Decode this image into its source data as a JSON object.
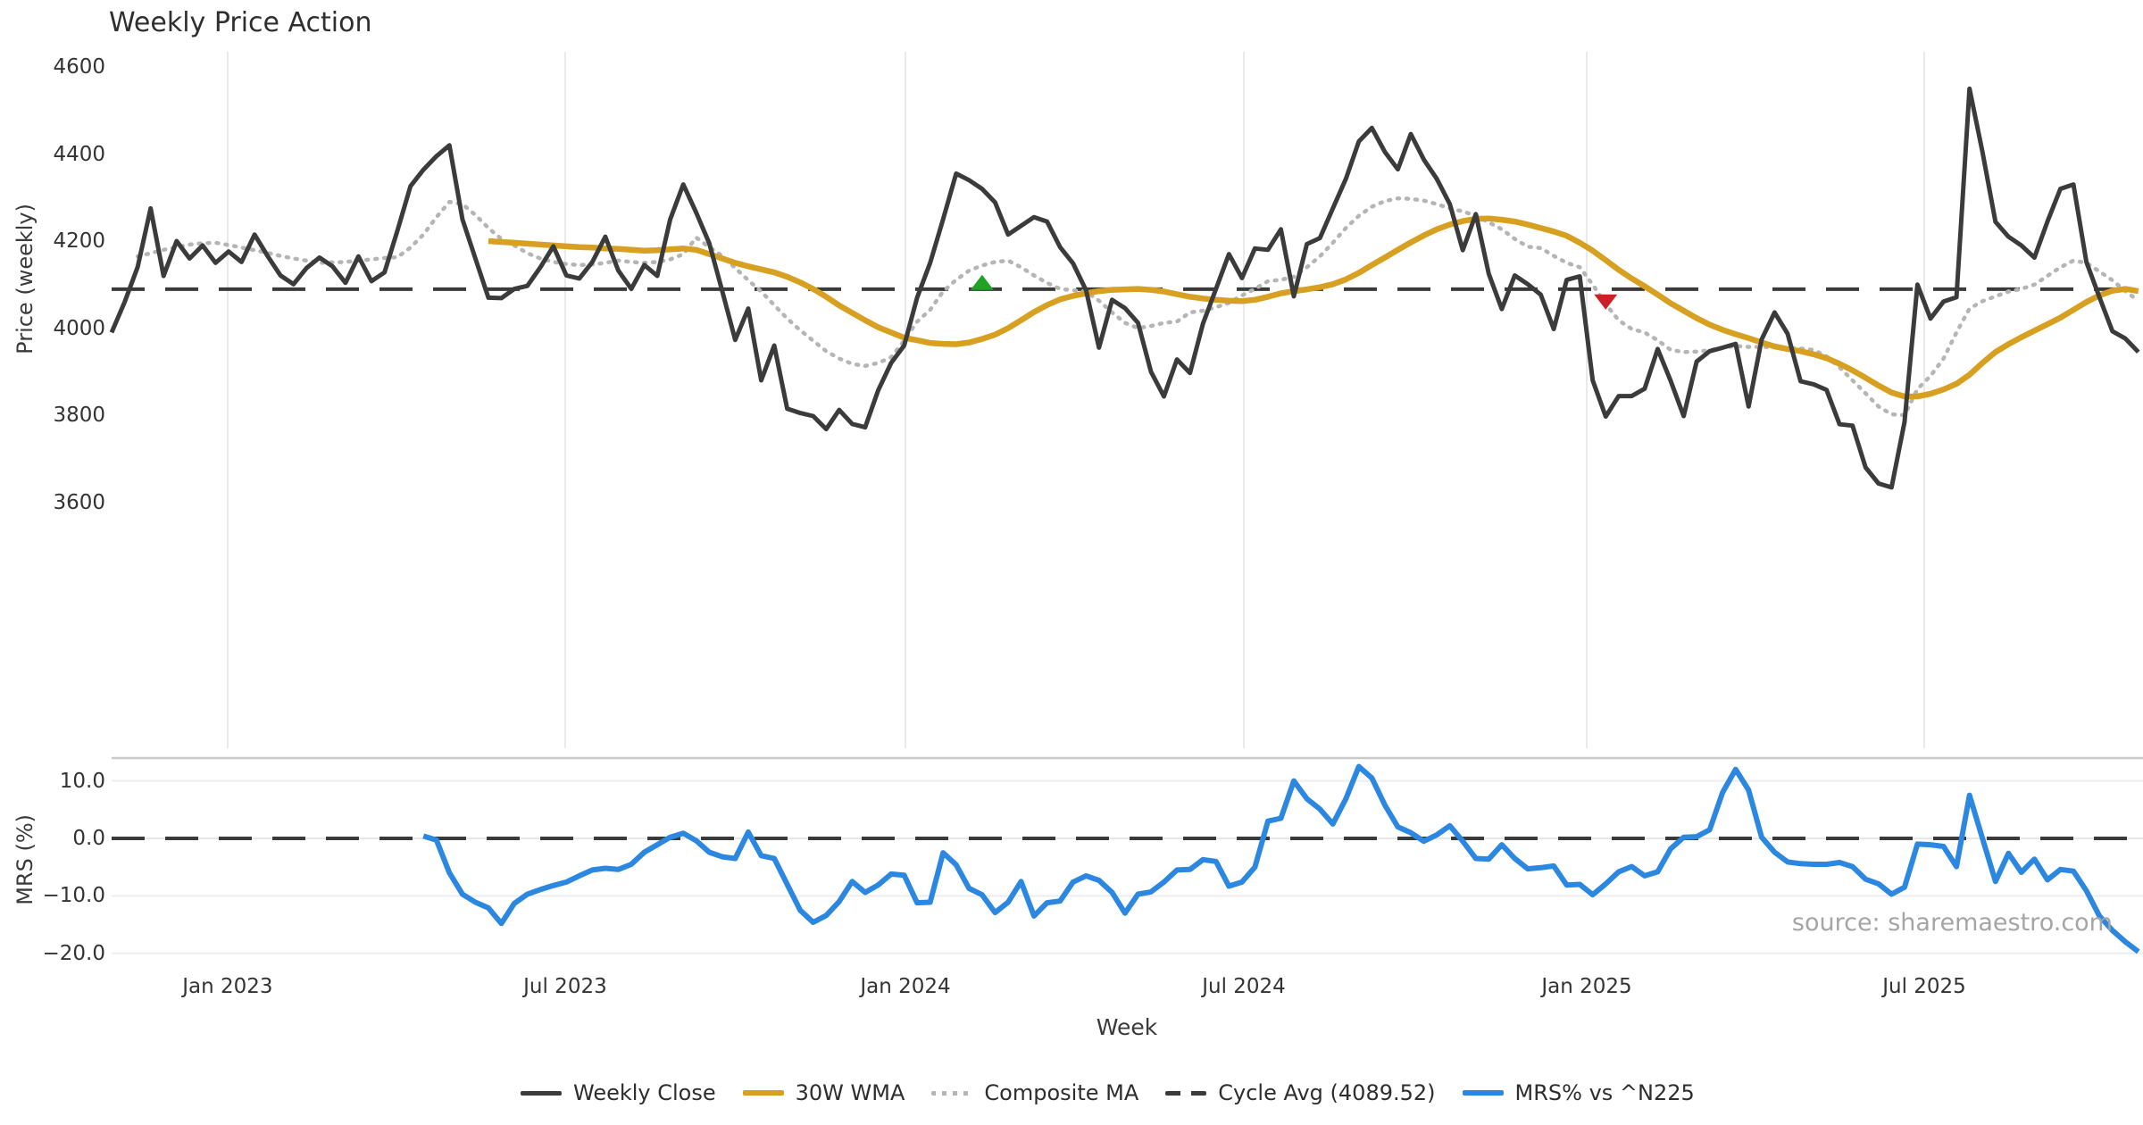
{
  "title": "Weekly Price Action",
  "source": "source: sharemaestro.com",
  "x_axis": {
    "label": "Week",
    "ticks": [
      {
        "label": "Jan 2023",
        "week": 8.93
      },
      {
        "label": "Jul 2023",
        "week": 34.91
      },
      {
        "label": "Jan 2024",
        "week": 61.1
      },
      {
        "label": "Jul 2024",
        "week": 87.15
      },
      {
        "label": "Jan 2025",
        "week": 113.54
      },
      {
        "label": "Jul 2025",
        "week": 139.52
      }
    ]
  },
  "main_panel": {
    "y_label": "Price (weekly)",
    "y_ticks": [
      3600,
      3800,
      4000,
      4200,
      4400,
      4600
    ]
  },
  "lower_panel": {
    "y_label": "MRS (%)",
    "y_ticks": [
      {
        "label": "10.0",
        "value": 10
      },
      {
        "label": "0.0",
        "value": 0
      },
      {
        "label": "−10.0",
        "value": -10
      },
      {
        "label": "−20.0",
        "value": -20
      }
    ],
    "gridline_values": [
      10,
      -10,
      -20
    ]
  },
  "legend": {
    "items": [
      {
        "label": "Weekly Close",
        "style": "solid",
        "color": "#3b3b3b"
      },
      {
        "label": "30W WMA",
        "style": "solid",
        "color": "#d7a021"
      },
      {
        "label": "Composite MA",
        "style": "dotted",
        "color": "#b5b5b5"
      },
      {
        "label": "Cycle Avg (4089.52)",
        "style": "dashed",
        "color": "#3b3b3b"
      },
      {
        "label": "MRS% vs ^N225",
        "style": "solid",
        "color": "#2b87e0"
      }
    ]
  },
  "colors": {
    "close": "#3b3b3b",
    "wma30": "#d7a021",
    "composite": "#b5b5b5",
    "cycle_avg": "#3a3a3a",
    "mrs": "#2b87e0",
    "marker_up": "#1fa327",
    "marker_down": "#cb2026",
    "gridline": "#e9e9e9",
    "panel_border": "#c9c9c9"
  },
  "chart_data": {
    "type": "line",
    "title": "Weekly Price Action",
    "xlabel": "Week",
    "x_unit": "week_index",
    "main_ylabel": "Price (weekly)",
    "lower_ylabel": "MRS (%)",
    "main_ylim": [
      3090,
      4645
    ],
    "lower_ylim": [
      -22.7,
      14.0
    ],
    "cycle_avg": 4089.52,
    "legend_position": "bottom",
    "grid": {
      "main": "vertical-only",
      "lower": "horizontal-only"
    },
    "x_ticks": [
      {
        "label": "Jan 2023",
        "week": 8.93
      },
      {
        "label": "Jul 2023",
        "week": 34.91
      },
      {
        "label": "Jan 2024",
        "week": 61.1
      },
      {
        "label": "Jul 2024",
        "week": 87.15
      },
      {
        "label": "Jan 2025",
        "week": 113.54
      },
      {
        "label": "Jul 2025",
        "week": 139.52
      }
    ],
    "markers": [
      {
        "shape": "triangle-up",
        "color": "#1fa327",
        "week": 67,
        "price": 4104
      },
      {
        "shape": "triangle-down",
        "color": "#cb2026",
        "week": 115,
        "price": 4061
      }
    ],
    "series": [
      {
        "name": "Weekly Close",
        "panel": "main",
        "style": "solid",
        "color": "#3b3b3b",
        "start_week": 0,
        "values": [
          3990,
          4060,
          4140,
          4275,
          4120,
          4200,
          4160,
          4190,
          4150,
          4176,
          4152,
          4215,
          4166,
          4121,
          4101,
          4138,
          4162,
          4142,
          4104,
          4165,
          4108,
          4128,
          4224,
          4326,
          4364,
          4395,
          4420,
          4250,
          4160,
          4070,
          4069,
          4090,
          4097,
          4140,
          4188,
          4121,
          4114,
          4152,
          4210,
          4132,
          4090,
          4145,
          4120,
          4250,
          4330,
          4265,
          4195,
          4085,
          3973,
          4045,
          3880,
          3960,
          3815,
          3805,
          3798,
          3768,
          3812,
          3780,
          3772,
          3857,
          3920,
          3960,
          4070,
          4150,
          4250,
          4355,
          4340,
          4320,
          4289,
          4215,
          4235,
          4255,
          4245,
          4186,
          4149,
          4087,
          3955,
          4065,
          4046,
          4012,
          3900,
          3843,
          3928,
          3897,
          4010,
          4090,
          4170,
          4115,
          4183,
          4180,
          4227,
          4073,
          4193,
          4207,
          4275,
          4343,
          4429,
          4460,
          4405,
          4365,
          4446,
          4387,
          4343,
          4285,
          4179,
          4262,
          4125,
          4044,
          4121,
          4101,
          4077,
          3998,
          4111,
          4119,
          3880,
          3797,
          3844,
          3844,
          3861,
          3952,
          3879,
          3798,
          3923,
          3947,
          3955,
          3964,
          3820,
          3974,
          4036,
          3987,
          3878,
          3871,
          3858,
          3779,
          3776,
          3680,
          3643,
          3634,
          3784,
          4100,
          4022,
          4061,
          4071,
          4550,
          4405,
          4244,
          4210,
          4190,
          4162,
          4245,
          4320,
          4330,
          4152,
          4071,
          3993,
          3976,
          3945
        ]
      },
      {
        "name": "30W WMA",
        "panel": "main",
        "style": "solid",
        "color": "#d7a021",
        "start_week": 29,
        "values": [
          4200,
          4198,
          4196,
          4194,
          4192,
          4190,
          4188,
          4186,
          4185,
          4183,
          4182,
          4180,
          4178,
          4179,
          4181,
          4183,
          4180,
          4170,
          4160,
          4150,
          4142,
          4135,
          4128,
          4118,
          4105,
          4090,
          4072,
          4052,
          4035,
          4018,
          4002,
          3990,
          3978,
          3972,
          3966,
          3964,
          3963,
          3967,
          3975,
          3985,
          4000,
          4018,
          4037,
          4053,
          4066,
          4074,
          4080,
          4085,
          4088,
          4089,
          4090,
          4088,
          4084,
          4078,
          4072,
          4068,
          4065,
          4063,
          4062,
          4065,
          4072,
          4080,
          4085,
          4089,
          4094,
          4101,
          4112,
          4127,
          4145,
          4162,
          4180,
          4197,
          4213,
          4227,
          4238,
          4246,
          4251,
          4252,
          4249,
          4245,
          4238,
          4230,
          4222,
          4212,
          4196,
          4178,
          4156,
          4134,
          4114,
          4096,
          4077,
          4057,
          4040,
          4023,
          4008,
          3996,
          3986,
          3977,
          3967,
          3958,
          3952,
          3947,
          3940,
          3931,
          3918,
          3903,
          3886,
          3868,
          3852,
          3843,
          3843,
          3849,
          3859,
          3872,
          3893,
          3920,
          3945,
          3963,
          3979,
          3994,
          4009,
          4024,
          4042,
          4060,
          4075,
          4086,
          4090,
          4085
        ]
      },
      {
        "name": "Composite MA",
        "panel": "main",
        "style": "dotted",
        "color": "#b5b5b5",
        "start_week": 2,
        "values": [
          4165,
          4172,
          4180,
          4186,
          4192,
          4195,
          4196,
          4191,
          4185,
          4179,
          4173,
          4166,
          4160,
          4155,
          4150,
          4151,
          4152,
          4155,
          4158,
          4161,
          4163,
          4185,
          4215,
          4255,
          4290,
          4285,
          4260,
          4230,
          4205,
          4190,
          4172,
          4160,
          4152,
          4147,
          4145,
          4146,
          4150,
          4155,
          4152,
          4150,
          4152,
          4158,
          4170,
          4208,
          4186,
          4166,
          4138,
          4110,
          4084,
          4053,
          4022,
          3995,
          3971,
          3947,
          3930,
          3918,
          3913,
          3920,
          3933,
          3971,
          4015,
          4042,
          4084,
          4111,
          4132,
          4144,
          4152,
          4155,
          4140,
          4121,
          4104,
          4090,
          4087,
          4084,
          4063,
          4036,
          4012,
          4000,
          4005,
          4012,
          4015,
          4036,
          4040,
          4048,
          4058,
          4075,
          4090,
          4108,
          4111,
          4118,
          4140,
          4165,
          4196,
          4230,
          4258,
          4279,
          4292,
          4298,
          4297,
          4293,
          4285,
          4275,
          4268,
          4258,
          4243,
          4227,
          4205,
          4187,
          4184,
          4166,
          4150,
          4140,
          4100,
          4055,
          4018,
          3998,
          3990,
          3972,
          3950,
          3945,
          3946,
          3949,
          3955,
          3959,
          3957,
          3957,
          3956,
          3955,
          3953,
          3950,
          3935,
          3910,
          3880,
          3850,
          3820,
          3802,
          3800,
          3860,
          3890,
          3930,
          3990,
          4045,
          4062,
          4073,
          4084,
          4090,
          4100,
          4120,
          4140,
          4155,
          4150,
          4130,
          4110,
          4085,
          4063
        ]
      },
      {
        "name": "MRS% vs ^N225",
        "panel": "lower",
        "style": "solid",
        "color": "#2b87e0",
        "start_week": 24,
        "values": [
          0.4,
          -0.3,
          -6.0,
          -9.7,
          -11.1,
          -12.1,
          -14.8,
          -11.3,
          -9.7,
          -8.9,
          -8.2,
          -7.6,
          -6.5,
          -5.5,
          -5.2,
          -5.4,
          -4.5,
          -2.4,
          -1.1,
          0.2,
          0.9,
          -0.4,
          -2.4,
          -3.2,
          -3.5,
          1.1,
          -3.0,
          -3.5,
          -8.0,
          -12.5,
          -14.6,
          -13.4,
          -11.0,
          -7.5,
          -9.4,
          -8.1,
          -6.2,
          -6.4,
          -11.2,
          -11.1,
          -2.5,
          -4.6,
          -8.7,
          -9.8,
          -12.9,
          -11.1,
          -7.5,
          -13.5,
          -11.2,
          -10.9,
          -7.6,
          -6.5,
          -7.3,
          -9.4,
          -13.0,
          -9.7,
          -9.3,
          -7.6,
          -5.5,
          -5.4,
          -3.7,
          -4.0,
          -8.3,
          -7.6,
          -5.0,
          3.0,
          3.5,
          10.0,
          6.9,
          5.1,
          2.5,
          6.9,
          12.5,
          10.5,
          5.8,
          2.0,
          1.0,
          -0.5,
          0.6,
          2.2,
          -0.5,
          -3.5,
          -3.6,
          -1.1,
          -3.5,
          -5.3,
          -5.1,
          -4.8,
          -8.1,
          -8.0,
          -9.8,
          -7.9,
          -5.8,
          -4.9,
          -6.5,
          -5.8,
          -1.8,
          0.2,
          0.3,
          1.5,
          8.0,
          12.0,
          8.4,
          0.2,
          -2.4,
          -4.1,
          -4.4,
          -4.5,
          -4.5,
          -4.2,
          -4.9,
          -7.1,
          -7.9,
          -9.7,
          -8.5,
          -1.0,
          -1.1,
          -1.4,
          -4.9,
          7.5,
          0.0,
          -7.5,
          -2.6,
          -5.9,
          -3.6,
          -7.2,
          -5.4,
          -5.7,
          -9.1,
          -13.5,
          -16.0,
          -18.0,
          -19.7
        ]
      }
    ]
  }
}
